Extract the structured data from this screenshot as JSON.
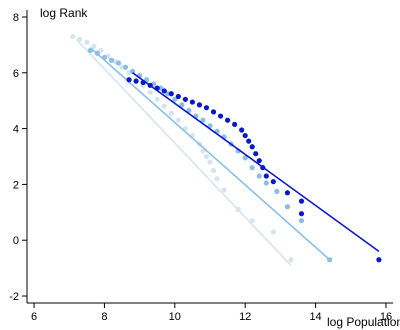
{
  "chart_data": {
    "type": "scatter",
    "title": "",
    "xlabel": "log Population",
    "ylabel": "log Rank",
    "xlim": [
      5.8,
      16.2
    ],
    "ylim": [
      -2.25,
      8.25
    ],
    "xticks": [
      6,
      8,
      10,
      12,
      14,
      16
    ],
    "xtick_labels": [
      "6",
      "8",
      "10",
      "12",
      "14",
      "16"
    ],
    "yticks": [
      -2,
      0,
      2,
      4,
      6,
      8
    ],
    "ytick_labels": [
      "-2",
      "0",
      "2",
      "4",
      "6",
      "8"
    ],
    "grid": false,
    "legend": "none",
    "series": [
      {
        "color": "#d6e4ee",
        "points": [
          [
            7.1,
            7.3
          ],
          [
            7.3,
            7.2
          ],
          [
            7.5,
            7.1
          ],
          [
            7.7,
            6.95
          ],
          [
            7.9,
            6.8
          ],
          [
            8.1,
            6.6
          ],
          [
            8.3,
            6.4
          ],
          [
            8.5,
            6.2
          ],
          [
            8.7,
            6.0
          ],
          [
            8.9,
            5.75
          ],
          [
            9.1,
            5.55
          ],
          [
            9.3,
            5.3
          ],
          [
            9.5,
            5.05
          ],
          [
            9.7,
            4.8
          ],
          [
            9.9,
            4.55
          ],
          [
            10.1,
            4.3
          ],
          [
            10.3,
            4.0
          ],
          [
            10.5,
            3.75
          ],
          [
            10.7,
            3.45
          ],
          [
            10.8,
            3.2
          ],
          [
            10.9,
            3.0
          ],
          [
            11.0,
            2.8
          ],
          [
            11.1,
            2.5
          ],
          [
            11.2,
            2.2
          ],
          [
            11.4,
            1.8
          ],
          [
            11.8,
            1.1
          ],
          [
            12.2,
            0.7
          ],
          [
            12.8,
            0.3
          ],
          [
            13.3,
            -0.7
          ]
        ],
        "fit": {
          "x": [
            7.2,
            13.3
          ],
          "y": [
            7.2,
            -0.9
          ]
        }
      },
      {
        "color": "#89bfe6",
        "points": [
          [
            7.6,
            6.8
          ],
          [
            7.8,
            6.7
          ],
          [
            8.0,
            6.55
          ],
          [
            8.2,
            6.45
          ],
          [
            8.4,
            6.35
          ],
          [
            8.6,
            6.2
          ],
          [
            8.8,
            6.05
          ],
          [
            9.0,
            5.9
          ],
          [
            9.2,
            5.75
          ],
          [
            9.4,
            5.6
          ],
          [
            9.6,
            5.45
          ],
          [
            9.8,
            5.25
          ],
          [
            10.0,
            5.05
          ],
          [
            10.2,
            4.85
          ],
          [
            10.4,
            4.65
          ],
          [
            10.6,
            4.45
          ],
          [
            10.8,
            4.3
          ],
          [
            11.0,
            4.1
          ],
          [
            11.2,
            3.9
          ],
          [
            11.4,
            3.7
          ],
          [
            11.6,
            3.45
          ],
          [
            11.8,
            3.2
          ],
          [
            12.0,
            2.95
          ],
          [
            12.2,
            2.6
          ],
          [
            12.4,
            2.3
          ],
          [
            12.6,
            2.05
          ],
          [
            12.9,
            1.75
          ],
          [
            13.2,
            1.2
          ],
          [
            13.6,
            0.7
          ],
          [
            14.4,
            -0.7
          ]
        ],
        "fit": {
          "x": [
            7.6,
            14.4
          ],
          "y": [
            6.9,
            -0.7
          ]
        }
      },
      {
        "color": "#0b17cc",
        "points": [
          [
            8.7,
            5.75
          ],
          [
            8.9,
            5.7
          ],
          [
            9.1,
            5.65
          ],
          [
            9.3,
            5.55
          ],
          [
            9.5,
            5.45
          ],
          [
            9.7,
            5.35
          ],
          [
            9.9,
            5.25
          ],
          [
            10.1,
            5.15
          ],
          [
            10.3,
            5.05
          ],
          [
            10.5,
            4.95
          ],
          [
            10.7,
            4.85
          ],
          [
            10.9,
            4.75
          ],
          [
            11.1,
            4.6
          ],
          [
            11.3,
            4.45
          ],
          [
            11.5,
            4.3
          ],
          [
            11.7,
            4.15
          ],
          [
            11.9,
            3.95
          ],
          [
            12.0,
            3.75
          ],
          [
            12.1,
            3.55
          ],
          [
            12.2,
            3.35
          ],
          [
            12.3,
            3.1
          ],
          [
            12.4,
            2.85
          ],
          [
            12.5,
            2.6
          ],
          [
            12.6,
            2.3
          ],
          [
            12.8,
            2.1
          ],
          [
            13.2,
            1.7
          ],
          [
            13.6,
            1.4
          ],
          [
            13.6,
            0.95
          ],
          [
            15.8,
            -0.7
          ]
        ],
        "fit": {
          "x": [
            8.8,
            15.8
          ],
          "y": [
            6.0,
            -0.4
          ]
        }
      }
    ]
  }
}
